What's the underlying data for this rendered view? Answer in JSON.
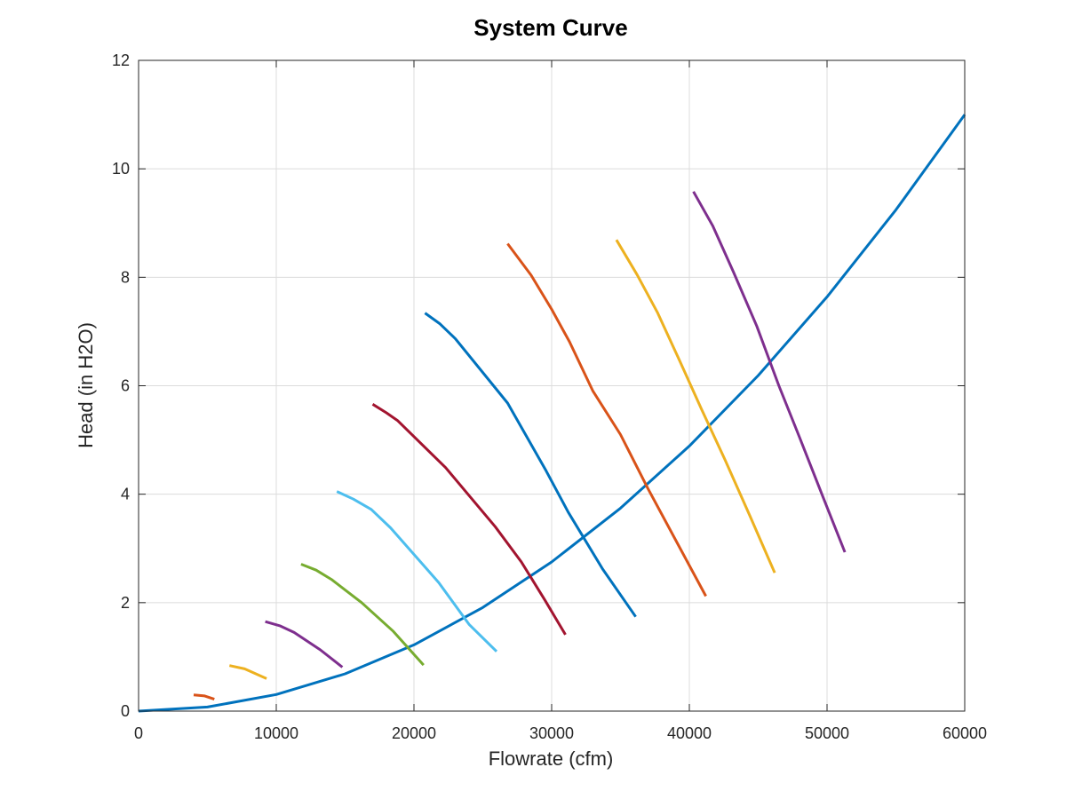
{
  "chart_data": {
    "type": "line",
    "title": "System Curve",
    "xlabel": "Flowrate (cfm)",
    "ylabel": "Head (in H2O)",
    "xlim": [
      0,
      60000
    ],
    "ylim": [
      0,
      12
    ],
    "xticks": [
      0,
      10000,
      20000,
      30000,
      40000,
      50000,
      60000
    ],
    "yticks": [
      0,
      2,
      4,
      6,
      8,
      10,
      12
    ],
    "grid": true,
    "colors": [
      "#0072BD",
      "#D95319",
      "#EDB120",
      "#7E2F8E",
      "#77AC30",
      "#4DBEEE",
      "#A2142F"
    ],
    "series": [
      {
        "color": "#0072BD",
        "width": 3,
        "points": [
          [
            0,
            0
          ],
          [
            5000,
            0.076
          ],
          [
            10000,
            0.306
          ],
          [
            15000,
            0.688
          ],
          [
            20000,
            1.222
          ],
          [
            25000,
            1.91
          ],
          [
            30000,
            2.75
          ],
          [
            35000,
            3.743
          ],
          [
            40000,
            4.889
          ],
          [
            45000,
            6.188
          ],
          [
            50000,
            7.639
          ],
          [
            55000,
            9.243
          ],
          [
            60000,
            11.0
          ]
        ]
      },
      {
        "color": "#D95319",
        "width": 3,
        "points": [
          [
            4000,
            0.3
          ],
          [
            4800,
            0.28
          ],
          [
            5500,
            0.22
          ]
        ]
      },
      {
        "color": "#EDB120",
        "width": 3,
        "points": [
          [
            6600,
            0.84
          ],
          [
            7700,
            0.78
          ],
          [
            9300,
            0.6
          ]
        ]
      },
      {
        "color": "#7E2F8E",
        "width": 3,
        "points": [
          [
            9200,
            1.65
          ],
          [
            10300,
            1.57
          ],
          [
            11300,
            1.45
          ],
          [
            13200,
            1.13
          ],
          [
            14800,
            0.81
          ]
        ]
      },
      {
        "color": "#77AC30",
        "width": 3,
        "points": [
          [
            11800,
            2.71
          ],
          [
            12900,
            2.6
          ],
          [
            14000,
            2.43
          ],
          [
            16200,
            2.0
          ],
          [
            18500,
            1.47
          ],
          [
            20700,
            0.85
          ]
        ]
      },
      {
        "color": "#4DBEEE",
        "width": 3,
        "points": [
          [
            14400,
            4.05
          ],
          [
            15600,
            3.91
          ],
          [
            16900,
            3.72
          ],
          [
            18300,
            3.38
          ],
          [
            21800,
            2.37
          ],
          [
            24000,
            1.6
          ],
          [
            26000,
            1.1
          ]
        ]
      },
      {
        "color": "#A2142F",
        "width": 3,
        "points": [
          [
            17000,
            5.66
          ],
          [
            18000,
            5.5
          ],
          [
            18800,
            5.36
          ],
          [
            22300,
            4.49
          ],
          [
            25900,
            3.4
          ],
          [
            27800,
            2.75
          ],
          [
            29500,
            2.05
          ],
          [
            31000,
            1.41
          ]
        ]
      },
      {
        "color": "#0072BD",
        "width": 3,
        "points": [
          [
            20800,
            7.34
          ],
          [
            21900,
            7.14
          ],
          [
            23000,
            6.87
          ],
          [
            26800,
            5.68
          ],
          [
            29600,
            4.43
          ],
          [
            31200,
            3.67
          ],
          [
            33700,
            2.62
          ],
          [
            36100,
            1.74
          ]
        ]
      },
      {
        "color": "#D95319",
        "width": 3,
        "points": [
          [
            26800,
            8.62
          ],
          [
            28500,
            8.04
          ],
          [
            30000,
            7.41
          ],
          [
            31300,
            6.81
          ],
          [
            33000,
            5.9
          ],
          [
            35000,
            5.1
          ],
          [
            37000,
            4.1
          ],
          [
            41200,
            2.12
          ]
        ]
      },
      {
        "color": "#EDB120",
        "width": 3,
        "points": [
          [
            34700,
            8.69
          ],
          [
            36200,
            8.05
          ],
          [
            37700,
            7.34
          ],
          [
            39300,
            6.46
          ],
          [
            40900,
            5.56
          ],
          [
            42600,
            4.63
          ],
          [
            44400,
            3.6
          ],
          [
            46200,
            2.55
          ]
        ]
      },
      {
        "color": "#7E2F8E",
        "width": 3,
        "points": [
          [
            40300,
            9.58
          ],
          [
            41700,
            8.95
          ],
          [
            43200,
            8.1
          ],
          [
            44900,
            7.1
          ],
          [
            46500,
            6.0
          ],
          [
            48000,
            5.05
          ],
          [
            49700,
            3.95
          ],
          [
            51300,
            2.93
          ]
        ]
      }
    ]
  }
}
